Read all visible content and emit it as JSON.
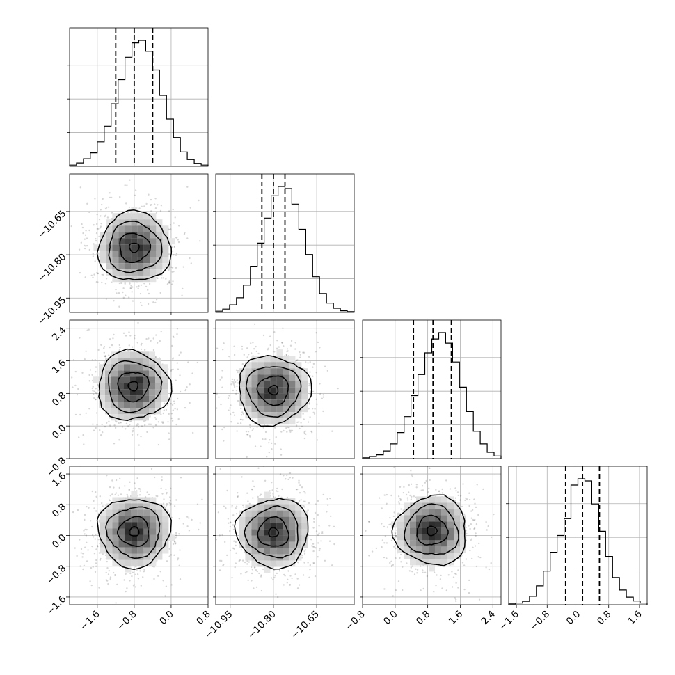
{
  "chart_data": {
    "type": "corner",
    "grid": true,
    "parameters": [
      {
        "index": 0,
        "ticks": [
          -1.6,
          -0.8,
          0.0,
          0.8
        ],
        "tick_labels": [
          "−1.6",
          "−0.8",
          "0.0",
          "0.8"
        ],
        "range": [
          -2.2,
          0.8
        ],
        "quantiles": [
          -1.2,
          -0.8,
          -0.4
        ],
        "hist_counts": [
          3,
          8,
          18,
          32,
          58,
          95,
          148,
          205,
          258,
          292,
          298,
          272,
          228,
          168,
          112,
          68,
          34,
          16,
          7,
          3
        ]
      },
      {
        "index": 1,
        "ticks": [
          -10.95,
          -10.8,
          -10.65
        ],
        "tick_labels": [
          "−10.95",
          "−10.80",
          "−10.65"
        ],
        "range": [
          -11.0,
          -10.52
        ],
        "quantiles": [
          -10.84,
          -10.8,
          -10.76
        ],
        "hist_counts": [
          3,
          8,
          18,
          35,
          65,
          110,
          165,
          225,
          278,
          300,
          295,
          258,
          198,
          138,
          85,
          45,
          22,
          10,
          4,
          2
        ]
      },
      {
        "index": 2,
        "ticks": [
          -0.8,
          0.0,
          0.8,
          1.6,
          2.4
        ],
        "tick_labels": [
          "−0.8",
          "0.0",
          "0.8",
          "1.6",
          "2.4"
        ],
        "range": [
          -0.8,
          2.6
        ],
        "quantiles": [
          0.45,
          0.93,
          1.38
        ],
        "hist_counts": [
          2,
          5,
          9,
          18,
          35,
          62,
          100,
          150,
          200,
          252,
          285,
          300,
          275,
          230,
          170,
          112,
          65,
          35,
          15,
          6
        ]
      },
      {
        "index": 3,
        "ticks": [
          -1.6,
          -0.8,
          0.0,
          0.8,
          1.6
        ],
        "tick_labels": [
          "−1.6",
          "−0.8",
          "0.0",
          "0.8",
          "1.6"
        ],
        "range": [
          -1.8,
          1.8
        ],
        "quantiles": [
          -0.32,
          0.12,
          0.56
        ],
        "hist_counts": [
          2,
          4,
          8,
          20,
          45,
          80,
          125,
          165,
          205,
          285,
          300,
          295,
          240,
          175,
          115,
          65,
          35,
          18,
          9,
          4
        ]
      }
    ],
    "pairs": [
      {
        "x": 0,
        "y": 1,
        "center": [
          -0.8,
          -10.775
        ]
      },
      {
        "x": 0,
        "y": 2,
        "center": [
          -0.82,
          0.98
        ]
      },
      {
        "x": 1,
        "y": 2,
        "center": [
          -10.8,
          0.88
        ]
      },
      {
        "x": 0,
        "y": 3,
        "center": [
          -0.8,
          0.1
        ]
      },
      {
        "x": 1,
        "y": 3,
        "center": [
          -10.8,
          0.08
        ]
      },
      {
        "x": 2,
        "y": 3,
        "center": [
          0.9,
          0.12
        ]
      }
    ]
  }
}
